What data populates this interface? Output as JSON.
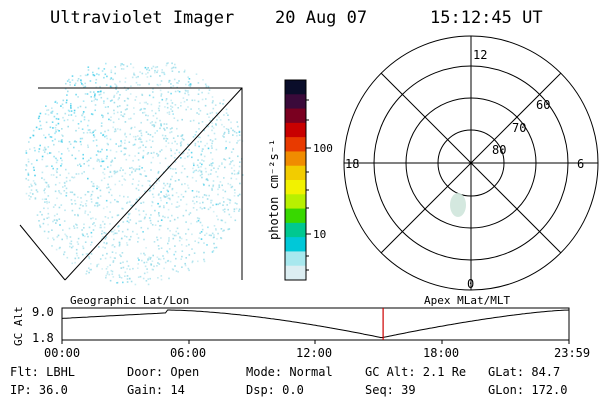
{
  "header": {
    "title": "Ultraviolet Imager",
    "date": "20 Aug 07",
    "time": "15:12:45 UT"
  },
  "image_panel": {
    "label": "Geographic Lat/Lon",
    "dot_color": "#8fd8e6",
    "dot_color_bright": "#2ec8e8"
  },
  "colorbar": {
    "unit_label": "photon cm⁻²s⁻¹",
    "ticks": [
      "100",
      "10"
    ],
    "scale": "log",
    "colors": [
      "#0a0d2a",
      "#3a0a3a",
      "#7a0020",
      "#c80000",
      "#e83a00",
      "#f08c00",
      "#f2cc00",
      "#f2f200",
      "#b8f000",
      "#38d800",
      "#00c890",
      "#00c8d8",
      "#a8e8ee",
      "#dceef2"
    ]
  },
  "polar_plot": {
    "label": "Apex MLat/MLT",
    "mlt_labels": {
      "top": "12",
      "left": "18",
      "right": "6",
      "bottom": "0"
    },
    "lat_labels": [
      "60",
      "70",
      "80"
    ],
    "ring_color": "#000000"
  },
  "altitude_plot": {
    "ylabel": "GC Alt",
    "yticks": [
      "9.0",
      "1.8"
    ],
    "xticks": [
      "00:00",
      "06:00",
      "12:00",
      "18:00",
      "23:59"
    ],
    "marker_time": "15:12",
    "marker_color": "#cc0000"
  },
  "info": {
    "filter": "Flt: LBHL",
    "ip": "IP: 36.0",
    "door": "Door: Open",
    "gain": "Gain: 14",
    "mode": "Mode: Normal",
    "dsp": "Dsp:    0.0",
    "gc_alt": "GC Alt: 2.1 Re",
    "seq": "Seq: 39",
    "glat": "GLat:  84.7",
    "glon": "GLon: 172.0"
  }
}
